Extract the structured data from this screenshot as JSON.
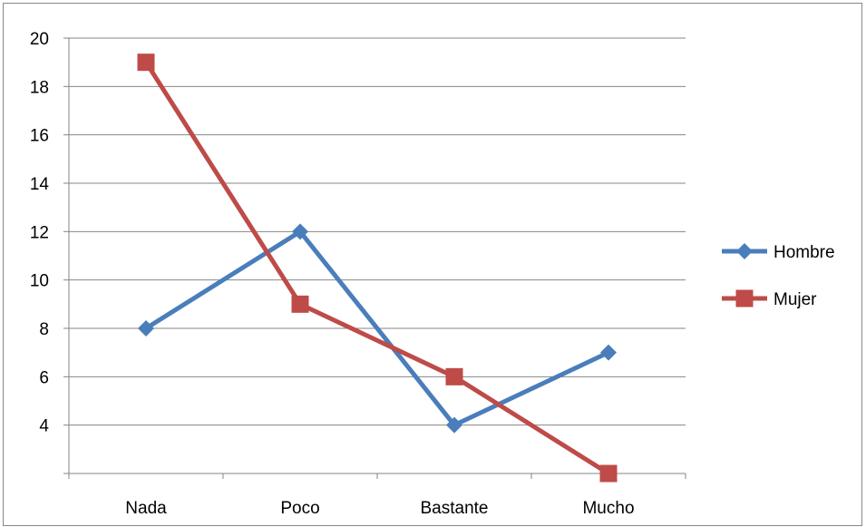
{
  "chart_data": {
    "type": "line",
    "categories": [
      "Nada",
      "Poco",
      "Bastante",
      "Mucho"
    ],
    "ylim": [
      2,
      20
    ],
    "yticks": [
      20,
      18,
      16,
      14,
      12,
      10,
      8,
      6,
      4
    ],
    "grid": true,
    "legend_position": "right",
    "series": [
      {
        "name": "Hombre",
        "values": [
          8,
          12,
          4,
          7
        ],
        "color": "#4A7EBB",
        "marker": "diamond"
      },
      {
        "name": "Mujer",
        "values": [
          19,
          9,
          6,
          2
        ],
        "color": "#BE4B48",
        "marker": "square"
      }
    ]
  }
}
